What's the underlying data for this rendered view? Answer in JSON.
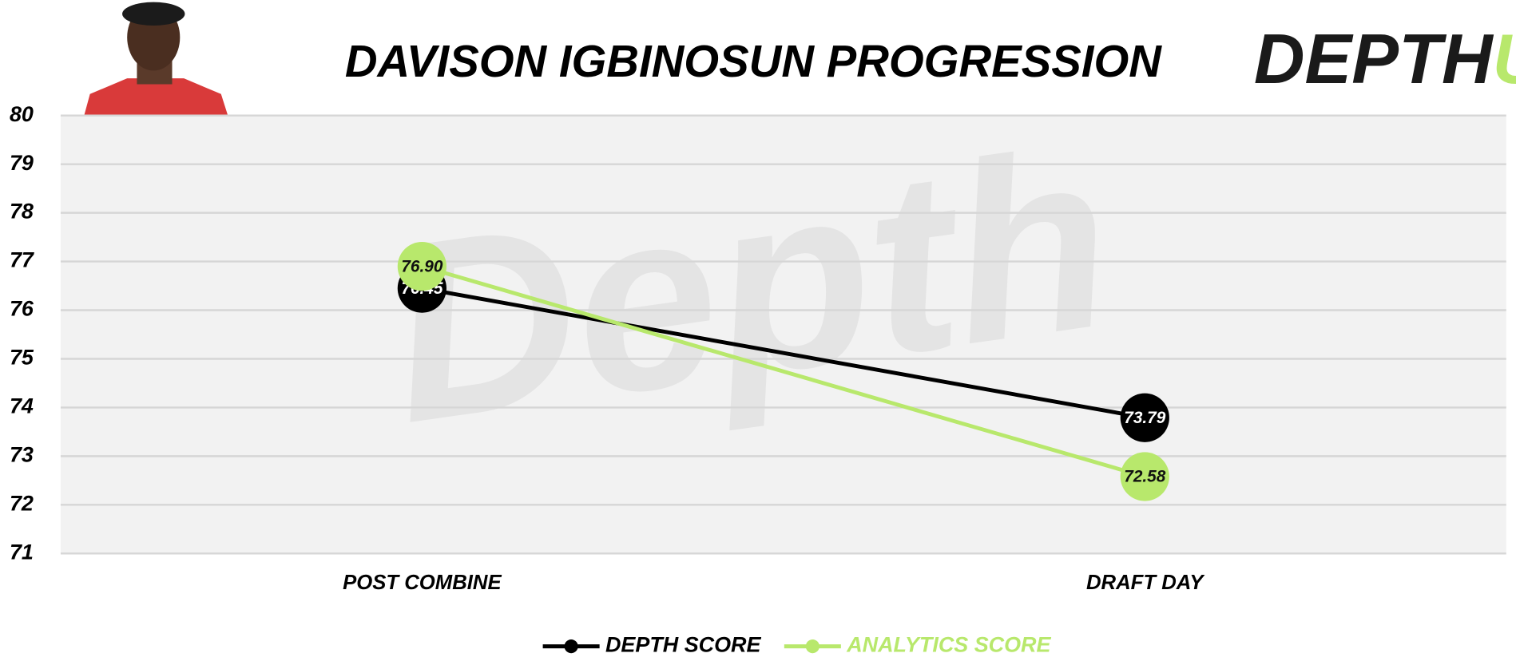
{
  "chart_data": {
    "type": "line",
    "title": "DAVISON IGBINOSUN PROGRESSION",
    "logo_text": "DEPTH",
    "logo_accent": "U",
    "watermark": "Depth",
    "categories": [
      "POST COMBINE",
      "DRAFT DAY"
    ],
    "series": [
      {
        "name": "DEPTH SCORE",
        "color": "#000000",
        "values": [
          76.45,
          73.79
        ],
        "value_labels": [
          "76.45",
          "73.79"
        ]
      },
      {
        "name": "ANALYTICS SCORE",
        "color": "#b8e86c",
        "values": [
          76.9,
          72.58
        ],
        "value_labels": [
          "76.90",
          "72.58"
        ]
      }
    ],
    "ylim": [
      71,
      80
    ],
    "yticks": [
      71,
      72,
      73,
      74,
      75,
      76,
      77,
      78,
      79,
      80
    ],
    "grid": true,
    "legend": "bottom"
  }
}
